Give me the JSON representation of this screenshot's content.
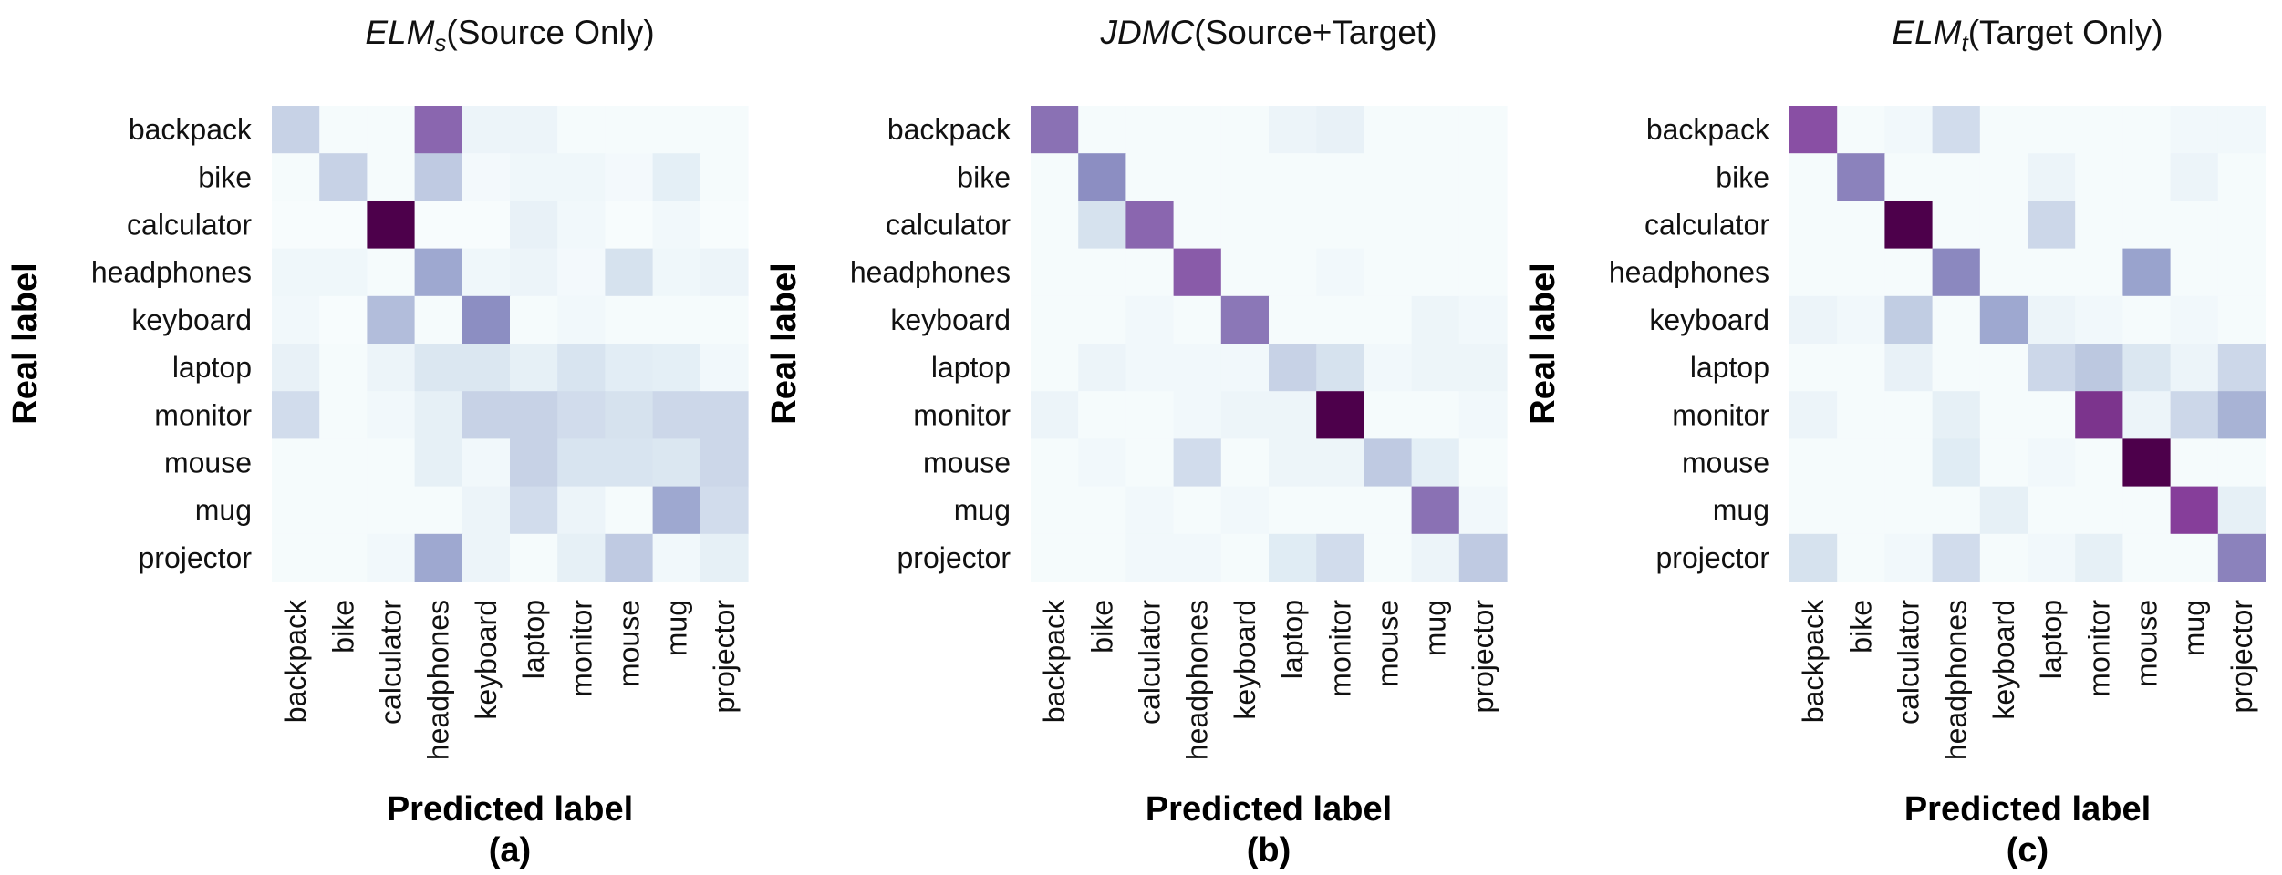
{
  "colors": {
    "low": "#f7fcfd",
    "mid": "#8c96c6",
    "high": "#4d004b"
  },
  "chart_data": [
    {
      "type": "heatmap",
      "title_main": "ELM",
      "title_sub": "s",
      "title_rest": "(Source Only)",
      "panel_label": "(a)",
      "xlabel": "Predicted label",
      "ylabel": "Real label",
      "rows": [
        "backpack",
        "bike",
        "calculator",
        "headphones",
        "keyboard",
        "laptop",
        "monitor",
        "mouse",
        "mug",
        "projector"
      ],
      "cols": [
        "backpack",
        "bike",
        "calculator",
        "headphones",
        "keyboard",
        "laptop",
        "monitor",
        "mouse",
        "mug",
        "projector"
      ],
      "values": [
        [
          0.22,
          0.01,
          0.01,
          0.62,
          0.06,
          0.06,
          0.01,
          0.01,
          0.01,
          0.01
        ],
        [
          0.01,
          0.22,
          0.01,
          0.25,
          0.02,
          0.04,
          0.04,
          0.02,
          0.1,
          0.01
        ],
        [
          0.0,
          0.0,
          1.0,
          0.0,
          0.0,
          0.08,
          0.03,
          0.0,
          0.03,
          0.0
        ],
        [
          0.04,
          0.04,
          0.01,
          0.38,
          0.04,
          0.06,
          0.02,
          0.16,
          0.04,
          0.06
        ],
        [
          0.03,
          0.0,
          0.3,
          0.01,
          0.48,
          0.01,
          0.03,
          0.01,
          0.01,
          0.01
        ],
        [
          0.08,
          0.01,
          0.06,
          0.14,
          0.14,
          0.09,
          0.15,
          0.11,
          0.1,
          0.03
        ],
        [
          0.18,
          0.01,
          0.03,
          0.09,
          0.22,
          0.22,
          0.18,
          0.16,
          0.2,
          0.2
        ],
        [
          0.01,
          0.01,
          0.01,
          0.09,
          0.03,
          0.22,
          0.15,
          0.15,
          0.14,
          0.2
        ],
        [
          0.01,
          0.01,
          0.01,
          0.01,
          0.06,
          0.18,
          0.06,
          0.01,
          0.38,
          0.18
        ],
        [
          0.01,
          0.01,
          0.03,
          0.38,
          0.06,
          0.01,
          0.09,
          0.25,
          0.03,
          0.09
        ]
      ]
    },
    {
      "type": "heatmap",
      "title_main": "JDMC",
      "title_sub": "",
      "title_rest": "(Source+Target)",
      "panel_label": "(b)",
      "xlabel": "Predicted label",
      "ylabel": "Real label",
      "rows": [
        "backpack",
        "bike",
        "calculator",
        "headphones",
        "keyboard",
        "laptop",
        "monitor",
        "mouse",
        "mug",
        "projector"
      ],
      "cols": [
        "backpack",
        "bike",
        "calculator",
        "headphones",
        "keyboard",
        "laptop",
        "monitor",
        "mouse",
        "mug",
        "projector"
      ],
      "values": [
        [
          0.58,
          0.01,
          0.01,
          0.01,
          0.01,
          0.06,
          0.08,
          0.01,
          0.01,
          0.01
        ],
        [
          0.01,
          0.48,
          0.01,
          0.01,
          0.01,
          0.01,
          0.01,
          0.01,
          0.01,
          0.01
        ],
        [
          0.01,
          0.16,
          0.62,
          0.01,
          0.01,
          0.01,
          0.01,
          0.01,
          0.01,
          0.01
        ],
        [
          0.01,
          0.01,
          0.01,
          0.66,
          0.01,
          0.01,
          0.03,
          0.01,
          0.01,
          0.01
        ],
        [
          0.01,
          0.01,
          0.03,
          0.01,
          0.56,
          0.01,
          0.01,
          0.01,
          0.05,
          0.03
        ],
        [
          0.01,
          0.06,
          0.03,
          0.03,
          0.03,
          0.22,
          0.16,
          0.03,
          0.05,
          0.05
        ],
        [
          0.06,
          0.01,
          0.01,
          0.03,
          0.05,
          0.05,
          1.0,
          0.01,
          0.01,
          0.03
        ],
        [
          0.01,
          0.03,
          0.01,
          0.18,
          0.01,
          0.05,
          0.05,
          0.25,
          0.1,
          0.01
        ],
        [
          0.01,
          0.01,
          0.03,
          0.01,
          0.03,
          0.01,
          0.01,
          0.01,
          0.58,
          0.03
        ],
        [
          0.01,
          0.01,
          0.03,
          0.03,
          0.01,
          0.12,
          0.18,
          0.01,
          0.06,
          0.25
        ]
      ]
    },
    {
      "type": "heatmap",
      "title_main": "ELM",
      "title_sub": "t",
      "title_rest": "(Target Only)",
      "panel_label": "(c)",
      "xlabel": "Predicted label",
      "ylabel": "Real label",
      "rows": [
        "backpack",
        "bike",
        "calculator",
        "headphones",
        "keyboard",
        "laptop",
        "monitor",
        "mouse",
        "mug",
        "projector"
      ],
      "cols": [
        "backpack",
        "bike",
        "calculator",
        "headphones",
        "keyboard",
        "laptop",
        "monitor",
        "mouse",
        "mug",
        "projector"
      ],
      "values": [
        [
          0.7,
          0.01,
          0.03,
          0.18,
          0.01,
          0.01,
          0.01,
          0.01,
          0.03,
          0.03
        ],
        [
          0.01,
          0.52,
          0.01,
          0.01,
          0.01,
          0.06,
          0.01,
          0.01,
          0.06,
          0.01
        ],
        [
          0.01,
          0.01,
          1.0,
          0.01,
          0.01,
          0.2,
          0.01,
          0.01,
          0.01,
          0.01
        ],
        [
          0.01,
          0.01,
          0.01,
          0.5,
          0.01,
          0.01,
          0.01,
          0.4,
          0.01,
          0.01
        ],
        [
          0.06,
          0.03,
          0.24,
          0.01,
          0.38,
          0.06,
          0.03,
          0.01,
          0.03,
          0.01
        ],
        [
          0.01,
          0.01,
          0.08,
          0.01,
          0.01,
          0.2,
          0.26,
          0.14,
          0.06,
          0.2
        ],
        [
          0.06,
          0.01,
          0.01,
          0.09,
          0.01,
          0.01,
          0.8,
          0.06,
          0.2,
          0.34
        ],
        [
          0.01,
          0.01,
          0.01,
          0.12,
          0.01,
          0.03,
          0.01,
          1.0,
          0.01,
          0.01
        ],
        [
          0.01,
          0.01,
          0.01,
          0.01,
          0.09,
          0.01,
          0.01,
          0.01,
          0.76,
          0.09
        ],
        [
          0.16,
          0.01,
          0.03,
          0.18,
          0.01,
          0.03,
          0.09,
          0.01,
          0.01,
          0.52
        ]
      ]
    }
  ]
}
